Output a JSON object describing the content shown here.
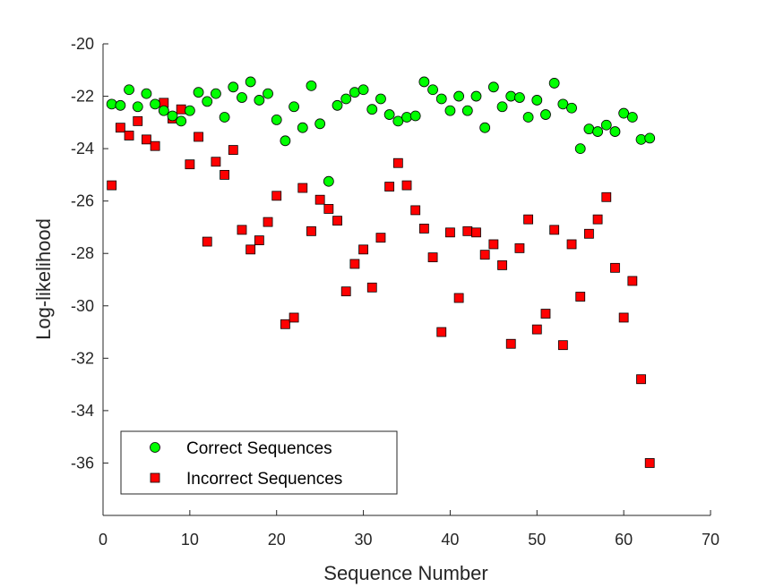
{
  "chart_data": {
    "type": "scatter",
    "title": "",
    "xlabel": "Sequence Number",
    "ylabel": "Log-likelihood",
    "xlim": [
      0,
      70
    ],
    "ylim": [
      -38,
      -20
    ],
    "xticks": [
      0,
      10,
      20,
      30,
      40,
      50,
      60,
      70
    ],
    "yticks": [
      -20,
      -22,
      -24,
      -26,
      -28,
      -30,
      -32,
      -34,
      -36
    ],
    "grid": false,
    "legend_position": "bottom-left",
    "series": [
      {
        "name": "Correct Sequences",
        "marker": "circle",
        "color": "#00ff00",
        "x": [
          1,
          2,
          3,
          4,
          5,
          6,
          7,
          8,
          9,
          10,
          11,
          12,
          13,
          14,
          15,
          16,
          17,
          18,
          19,
          20,
          21,
          22,
          23,
          24,
          25,
          26,
          27,
          28,
          29,
          30,
          31,
          32,
          33,
          34,
          35,
          36,
          37,
          38,
          39,
          40,
          41,
          42,
          43,
          44,
          45,
          46,
          47,
          48,
          49,
          50,
          51,
          52,
          53,
          54,
          55,
          56,
          57,
          58,
          59,
          60,
          61,
          62,
          63
        ],
        "y": [
          -22.3,
          -22.35,
          -21.75,
          -22.4,
          -21.9,
          -22.3,
          -22.55,
          -22.75,
          -22.95,
          -22.55,
          -21.85,
          -22.2,
          -21.9,
          -22.8,
          -21.65,
          -22.05,
          -21.45,
          -22.15,
          -21.9,
          -22.9,
          -23.7,
          -22.4,
          -23.2,
          -21.6,
          -23.05,
          -25.25,
          -22.35,
          -22.1,
          -21.85,
          -21.75,
          -22.5,
          -22.1,
          -22.7,
          -22.95,
          -22.8,
          -22.75,
          -21.45,
          -21.75,
          -22.1,
          -22.55,
          -22.0,
          -22.55,
          -22.0,
          -23.2,
          -21.65,
          -22.4,
          -22.0,
          -22.05,
          -22.8,
          -22.15,
          -22.7,
          -21.5,
          -22.3,
          -22.45,
          -24.0,
          -23.25,
          -23.35,
          -23.1,
          -23.35,
          -22.65,
          -22.8,
          -23.65,
          -23.6
        ]
      },
      {
        "name": "Incorrect Sequences",
        "marker": "square",
        "color": "#ff0000",
        "x": [
          1,
          2,
          3,
          4,
          5,
          6,
          7,
          8,
          9,
          10,
          11,
          12,
          13,
          14,
          15,
          16,
          17,
          18,
          19,
          20,
          21,
          22,
          23,
          24,
          25,
          26,
          27,
          28,
          29,
          30,
          31,
          32,
          33,
          34,
          35,
          36,
          37,
          38,
          39,
          40,
          41,
          42,
          43,
          44,
          45,
          46,
          47,
          48,
          49,
          50,
          51,
          52,
          53,
          54,
          55,
          56,
          57,
          58,
          59,
          60,
          61,
          62,
          63
        ],
        "y": [
          -25.4,
          -23.2,
          -23.5,
          -22.95,
          -23.65,
          -23.9,
          -22.25,
          -22.85,
          -22.5,
          -24.6,
          -23.55,
          -27.55,
          -24.5,
          -25.0,
          -24.05,
          -27.1,
          -27.85,
          -27.5,
          -26.8,
          -25.8,
          -30.7,
          -30.45,
          -25.5,
          -27.15,
          -25.95,
          -26.3,
          -26.75,
          -29.45,
          -28.4,
          -27.85,
          -29.3,
          -27.4,
          -25.45,
          -24.55,
          -25.4,
          -26.35,
          -27.05,
          -28.15,
          -31.0,
          -27.2,
          -29.7,
          -27.15,
          -27.2,
          -28.05,
          -27.65,
          -28.45,
          -31.45,
          -27.8,
          -26.7,
          -30.9,
          -30.3,
          -27.1,
          -31.5,
          -27.65,
          -29.65,
          -27.25,
          -26.7,
          -25.85,
          -28.55,
          -30.45,
          -29.05,
          -32.8,
          -36.0
        ]
      }
    ]
  },
  "colors": {
    "correct_fill": "#00ff00",
    "incorrect_fill": "#ff0000",
    "marker_edge": "#000000",
    "axis": "#262626"
  }
}
